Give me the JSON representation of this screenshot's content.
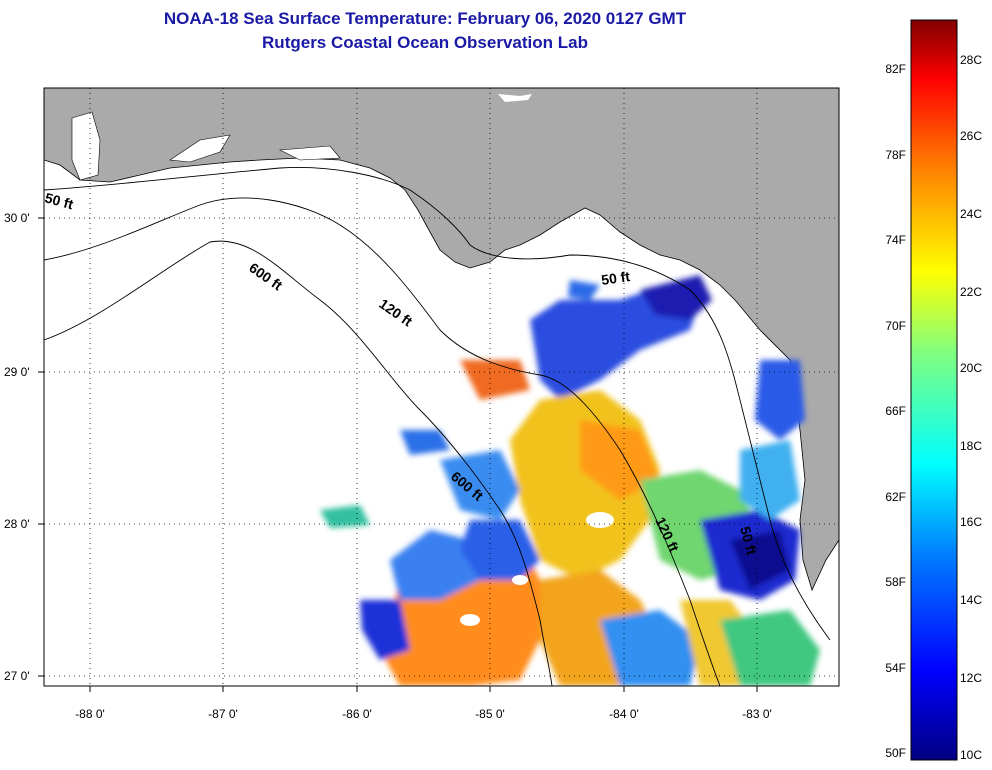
{
  "title_line1": "NOAA-18 Sea Surface Temperature:  February 06, 2020 0127 GMT",
  "title_line2": "Rutgers Coastal Ocean Observation Lab",
  "lat_labels": [
    "30 0'",
    "29 0'",
    "28 0'",
    "27 0'"
  ],
  "lon_labels": [
    "-88 0'",
    "-87 0'",
    "-86 0'",
    "-85 0'",
    "-84 0'",
    "-83 0'"
  ],
  "contour_labels": [
    "50 ft",
    "600 ft",
    "120 ft",
    "50 ft",
    "600 ft",
    "120 ft",
    "50 ft"
  ],
  "colorbar": {
    "fahrenheit": [
      "82F",
      "78F",
      "74F",
      "70F",
      "66F",
      "62F",
      "58F",
      "54F",
      "50F"
    ],
    "celsius": [
      "28C",
      "26C",
      "24C",
      "22C",
      "20C",
      "18C",
      "16C",
      "14C",
      "12C",
      "10C"
    ],
    "colors": [
      "#800000",
      "#ff0000",
      "#ff8000",
      "#ffff00",
      "#80ff80",
      "#00ffff",
      "#0080ff",
      "#0000ff",
      "#000080"
    ]
  },
  "colors": {
    "land": "#aaaaaa",
    "cloud": "#ffffff",
    "title": "#1a1aa6"
  }
}
